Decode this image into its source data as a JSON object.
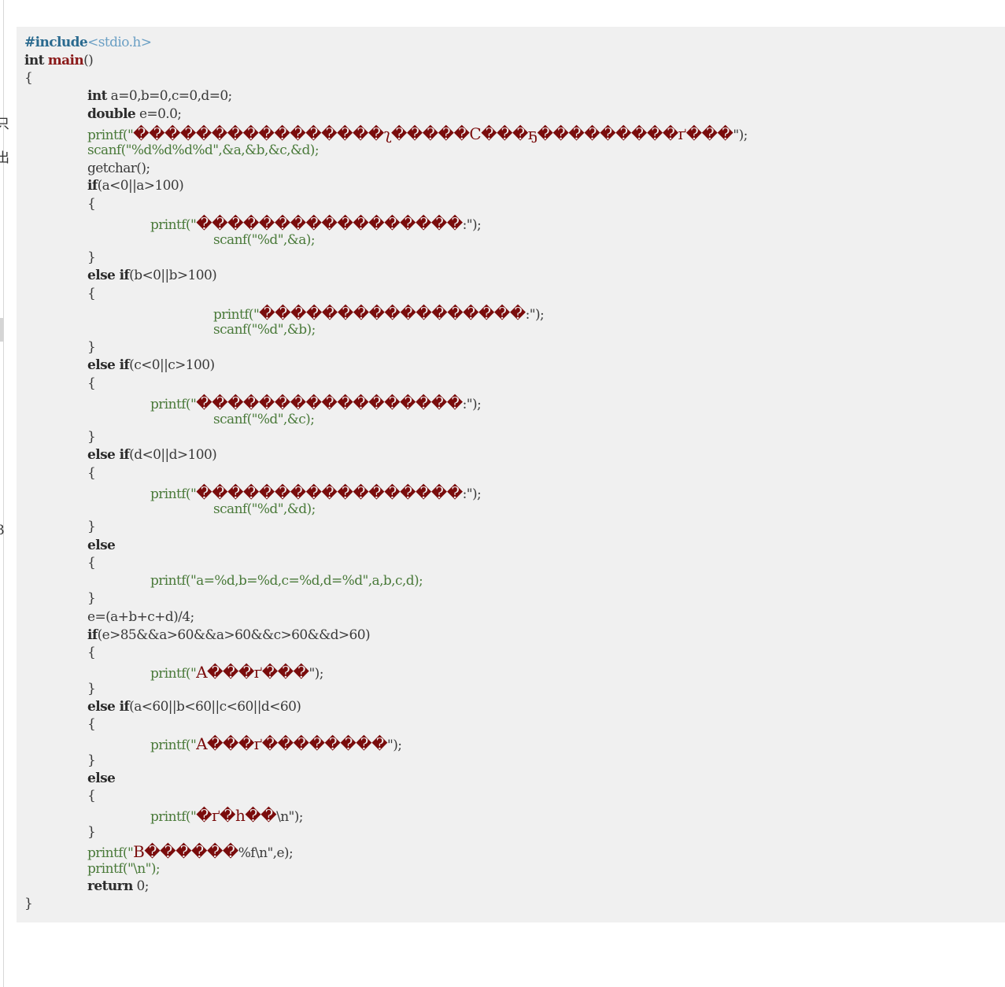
{
  "edge_glyphs": [
    "只",
    "出",
    "3"
  ],
  "code": {
    "include_directive": "#include",
    "include_target": "<stdio.h>",
    "main_type": "int",
    "main_name": "main",
    "main_parens": "()",
    "open_brace": "{",
    "close_brace": "}",
    "decl_int_kw": "int",
    "decl_int_rest": " a=0,b=0,c=0,d=0;",
    "decl_double_kw": "double",
    "decl_double_rest": " e=0.0;",
    "printf1_call": "printf(\"",
    "printf1_text": "����������������ʅ�����C���ҕ���������ґ���",
    "printf1_end": "\");",
    "scanf1": "scanf(\"%d%d%d%d\",&a,&b,&c,&d);",
    "getchar": "getchar();",
    "if_kw": "if",
    "if_a_cond": "(a<0||a>100)",
    "else_if_kw": "else if",
    "if_b_cond": "(b<0||b>100)",
    "if_c_cond": "(c<0||c>100)",
    "if_d_cond": "(d<0||d>100)",
    "else_kw": "else",
    "prompt_call": "printf(\"",
    "prompt_text": "�����������������",
    "prompt_end": ":\");",
    "scanf_a": "scanf(\"%d\",&a);",
    "scanf_b": "scanf(\"%d\",&b);",
    "scanf_c": "scanf(\"%d\",&c);",
    "scanf_d": "scanf(\"%d\",&d);",
    "printf_abcd": "printf(\"a=%d,b=%d,c=%d,d=%d\",a,b,c,d);",
    "avg_line": "e=(a+b+c+d)/4;",
    "if_e_cond": "(e>85&&a>60&&a>60&&c>60&&d>60)",
    "printf_a1_call": "printf(\"",
    "printf_a1_text": "A���ґ���",
    "printf_a1_end": "\");",
    "if_fail_cond": "(a<60||b<60||c<60||d<60)",
    "printf_a2_text": "A���ґ��������",
    "printf_a2_end": "\");",
    "printf_h_text": "�ґ�h��",
    "printf_h_end": "\\n\");",
    "printf_e_text": "B������",
    "printf_e_end": "%f\\n\",e);",
    "printf_nl": "printf(\"\\n\");",
    "return_kw": "return",
    "return_rest": " 0;"
  }
}
